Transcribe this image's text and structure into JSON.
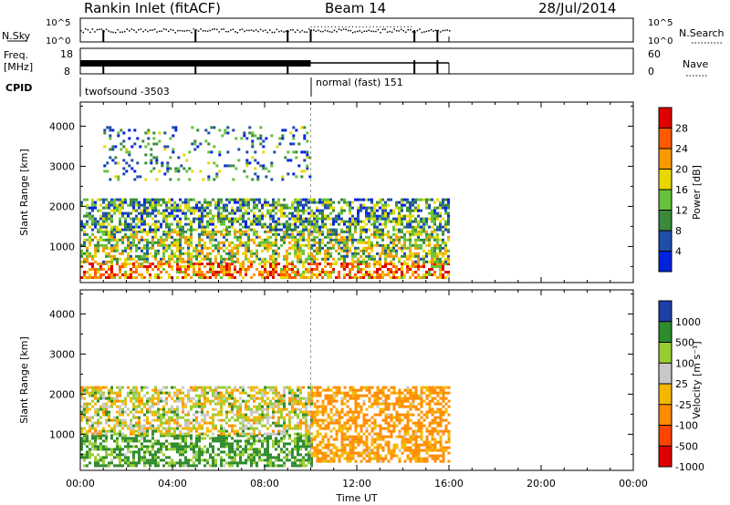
{
  "header": {
    "title": "Rankin Inlet (fitACF)",
    "beam": "Beam 14",
    "date": "28/Jul/2014"
  },
  "panels": {
    "nsky": {
      "label": "N.Sky",
      "left_ticks": [
        "10^5",
        "10^0"
      ],
      "right_ticks": [
        "10^5",
        "10^0"
      ],
      "right_label": "N.Search"
    },
    "freq": {
      "label_top": "Freq.",
      "label_bottom": "[MHz]",
      "left_ticks": [
        "18",
        "8"
      ],
      "right_ticks": [
        "60",
        "0"
      ],
      "right_label": "Nave"
    },
    "cpid": {
      "label": "CPID",
      "modes": [
        {
          "name": "twofsound -3503",
          "start": "00:00"
        },
        {
          "name": "normal (fast) 151",
          "start": "10:00"
        }
      ]
    }
  },
  "colors": {
    "power": [
      "#0022dd",
      "#1e4ea8",
      "#3a8a3a",
      "#66c23a",
      "#e8d800",
      "#f79a00",
      "#ff5a00",
      "#e00000"
    ],
    "velocity": [
      "#e00000",
      "#ff4500",
      "#ff8c00",
      "#f5b800",
      "#c8c8c8",
      "#9acd32",
      "#2e8b2e",
      "#1e3fa8"
    ]
  },
  "chart_data": [
    {
      "type": "heatmap",
      "name": "power",
      "xlabel": "",
      "ylabel": "Slant Range [km]",
      "xlim": [
        "00:00",
        "00:00"
      ],
      "yticks": [
        1000,
        2000,
        3000,
        4000
      ],
      "ylim": [
        100,
        4600
      ],
      "data_extent_hours": [
        0,
        16
      ],
      "colorbar": {
        "label": "Power [dB]",
        "ticks": [
          4,
          8,
          12,
          16,
          20,
          24,
          28
        ],
        "range": [
          0,
          32
        ]
      },
      "bands": [
        {
          "range_km": [
            200,
            600
          ],
          "hours": [
            0,
            16
          ],
          "level_db": 24
        },
        {
          "range_km": [
            600,
            1400
          ],
          "hours": [
            0,
            16
          ],
          "level_db": 15
        },
        {
          "range_km": [
            1400,
            2200
          ],
          "hours": [
            0,
            16
          ],
          "level_db": 11
        },
        {
          "range_km": [
            2700,
            4000
          ],
          "hours": [
            1,
            10
          ],
          "level_db": 9
        }
      ]
    },
    {
      "type": "heatmap",
      "name": "velocity",
      "xlabel": "Time UT",
      "ylabel": "Slant Range [km]",
      "xticks": [
        "00:00",
        "04:00",
        "08:00",
        "12:00",
        "16:00",
        "20:00",
        "00:00"
      ],
      "yticks": [
        1000,
        2000,
        3000,
        4000
      ],
      "ylim": [
        100,
        4600
      ],
      "colorbar": {
        "label": "Velocity [m s⁻¹]",
        "ticks": [
          1000,
          500,
          100,
          25,
          -25,
          -100,
          -500,
          -1000
        ]
      },
      "bands": [
        {
          "range_km": [
            200,
            1000
          ],
          "hours": [
            0,
            10
          ],
          "level_ms": 150
        },
        {
          "range_km": [
            1000,
            2200
          ],
          "hours": [
            0,
            10
          ],
          "level_ms": 0
        },
        {
          "range_km": [
            300,
            2200
          ],
          "hours": [
            10,
            16
          ],
          "level_ms": -150
        }
      ]
    }
  ]
}
